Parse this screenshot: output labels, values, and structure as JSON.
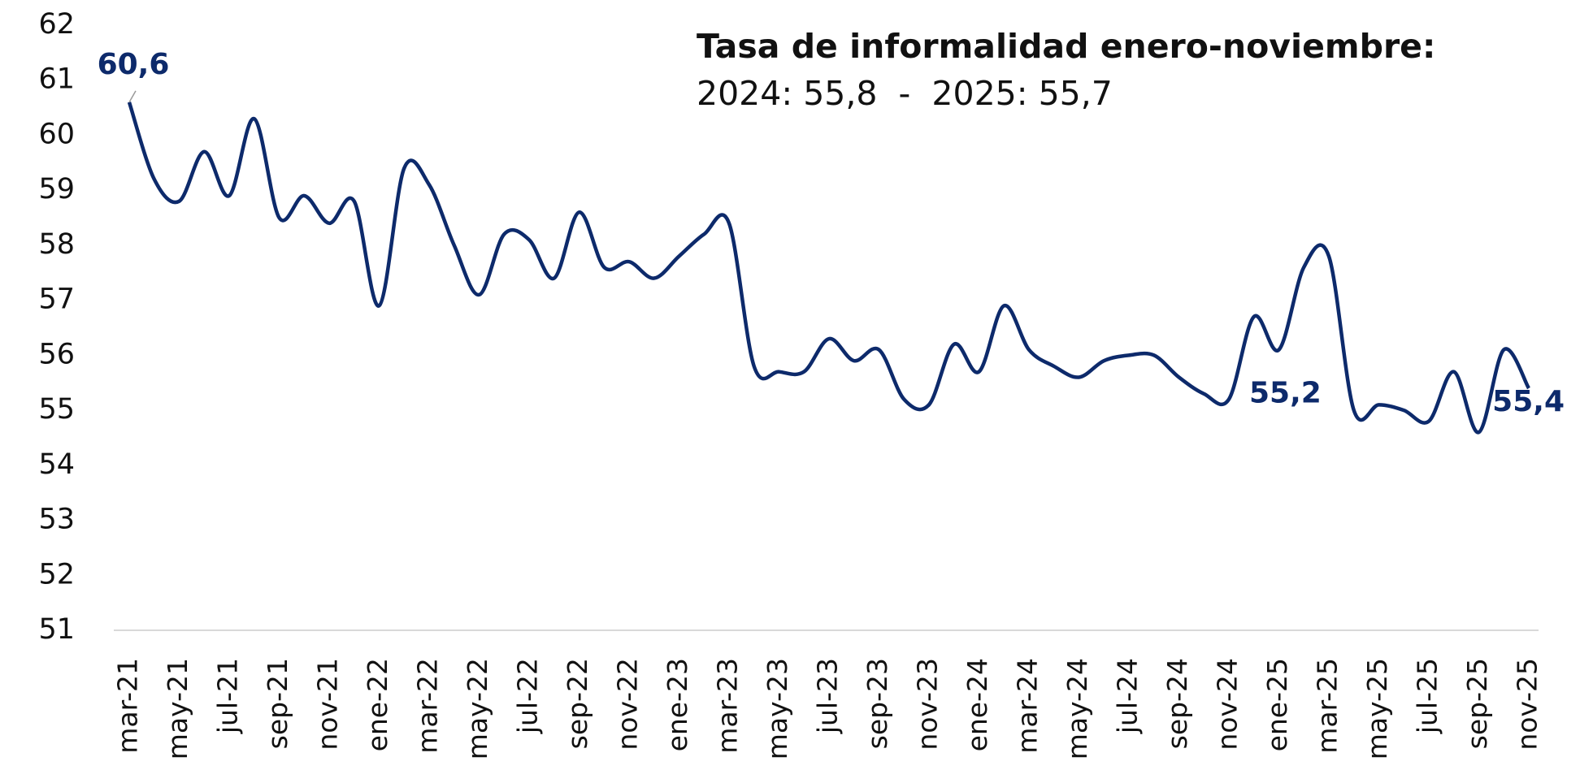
{
  "chart_data": {
    "type": "line",
    "title": "Tasa de informalidad enero-noviembre:",
    "subtitle": "2024: 55,8  -  2025: 55,7",
    "categories": [
      "mar-21",
      null,
      "may-21",
      null,
      "jul-21",
      null,
      "sep-21",
      null,
      "nov-21",
      null,
      "ene-22",
      null,
      "mar-22",
      null,
      "may-22",
      null,
      "jul-22",
      null,
      "sep-22",
      null,
      "nov-22",
      null,
      "ene-23",
      null,
      "mar-23",
      null,
      "may-23",
      null,
      "jul-23",
      null,
      "sep-23",
      null,
      "nov-23",
      null,
      "ene-24",
      null,
      "mar-24",
      null,
      "may-24",
      null,
      "jul-24",
      null,
      "sep-24",
      null,
      "nov-24",
      null,
      "ene-25",
      null,
      "mar-25",
      null,
      "may-25",
      null,
      "jul-25",
      null,
      "sep-25",
      null,
      "nov-25"
    ],
    "series": [
      {
        "name": "Tasa de informalidad",
        "color": "#0d2a6b",
        "values": [
          60.6,
          59.2,
          58.8,
          59.7,
          58.9,
          60.3,
          58.5,
          58.9,
          58.4,
          58.8,
          56.9,
          59.4,
          59.1,
          58.0,
          57.1,
          58.2,
          58.1,
          57.4,
          58.6,
          57.6,
          57.7,
          57.4,
          57.8,
          58.2,
          58.4,
          55.8,
          55.7,
          55.7,
          56.3,
          55.9,
          56.1,
          55.2,
          55.1,
          56.2,
          55.7,
          56.9,
          56.1,
          55.8,
          55.6,
          55.9,
          56.0,
          56.0,
          55.6,
          55.3,
          55.2,
          56.7,
          56.1,
          57.6,
          57.8,
          55.0,
          55.1,
          55.0,
          54.8,
          55.7,
          54.6,
          56.1,
          55.4
        ],
        "value_labels": [
          "60,6",
          null,
          null,
          null,
          null,
          null,
          null,
          null,
          null,
          null,
          null,
          null,
          null,
          null,
          null,
          null,
          null,
          null,
          null,
          null,
          null,
          null,
          null,
          null,
          null,
          null,
          null,
          null,
          null,
          null,
          null,
          null,
          null,
          null,
          null,
          null,
          null,
          null,
          null,
          null,
          null,
          null,
          null,
          null,
          "55,2",
          null,
          null,
          null,
          null,
          null,
          null,
          null,
          null,
          null,
          null,
          null,
          "55,4"
        ]
      }
    ],
    "ylim": [
      51,
      62
    ],
    "yticks": [
      51,
      52,
      53,
      54,
      55,
      56,
      57,
      58,
      59,
      60,
      61,
      62
    ],
    "grid": false
  }
}
